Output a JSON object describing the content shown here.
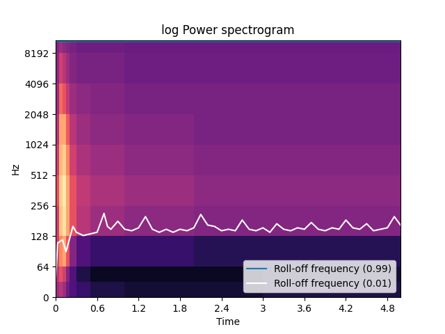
{
  "chart_data": {
    "type": "spectrogram",
    "title": "log Power spectrogram",
    "x_label": "Time",
    "y_label": "Hz",
    "log": "y",
    "grid": false,
    "legend": "lower right",
    "xlim": [
      0,
      4.99
    ],
    "xticks": [
      0,
      0.6,
      1.2,
      1.8,
      2.4,
      3,
      3.6,
      4.2,
      4.8
    ],
    "ylim": [
      0,
      11025
    ],
    "yticks": [
      0,
      64,
      128,
      256,
      512,
      1024,
      2048,
      4096,
      8192
    ],
    "time_edges": [
      0,
      0.05,
      0.1,
      0.15,
      0.2,
      0.3,
      0.5,
      1.0,
      2.0,
      3.0,
      4.0,
      4.99
    ],
    "freq_edges": [
      0,
      32,
      64,
      128,
      256,
      512,
      1024,
      2048,
      4096,
      8192,
      11025
    ],
    "clim": [
      -80,
      0
    ],
    "cells": [
      [
        -45,
        -40,
        -45,
        -55,
        -60,
        -65,
        -70,
        -72,
        -72,
        -70,
        -70
      ],
      [
        -40,
        -30,
        -35,
        -50,
        -60,
        -70,
        -75,
        -75,
        -75,
        -72,
        -72
      ],
      [
        -35,
        -20,
        -15,
        -30,
        -50,
        -60,
        -65,
        -65,
        -68,
        -68,
        -68
      ],
      [
        -35,
        -10,
        -5,
        -15,
        -30,
        -40,
        -45,
        -48,
        -50,
        -50,
        -50
      ],
      [
        -30,
        -8,
        -3,
        -15,
        -30,
        -38,
        -42,
        -45,
        -48,
        -48,
        -48
      ],
      [
        -35,
        -12,
        -8,
        -20,
        -35,
        -42,
        -45,
        -48,
        -50,
        -50,
        -50
      ],
      [
        -40,
        -15,
        -15,
        -28,
        -40,
        -45,
        -48,
        -50,
        -52,
        -52,
        -52
      ],
      [
        -45,
        -25,
        -30,
        -38,
        -45,
        -48,
        -50,
        -52,
        -52,
        -52,
        -52
      ],
      [
        -48,
        -35,
        -40,
        -45,
        -50,
        -52,
        -52,
        -54,
        -54,
        -54,
        -54
      ],
      [
        -50,
        -45,
        -48,
        -50,
        -52,
        -54,
        -54,
        -55,
        -55,
        -55,
        -55
      ]
    ],
    "x": [
      0,
      0.03,
      0.1,
      0.15,
      0.2,
      0.25,
      0.3,
      0.4,
      0.5,
      0.6,
      0.7,
      0.75,
      0.8,
      0.9,
      1.0,
      1.1,
      1.2,
      1.3,
      1.4,
      1.5,
      1.6,
      1.7,
      1.8,
      1.9,
      2.0,
      2.1,
      2.2,
      2.3,
      2.4,
      2.5,
      2.6,
      2.7,
      2.8,
      2.9,
      3.0,
      3.1,
      3.2,
      3.3,
      3.4,
      3.5,
      3.6,
      3.7,
      3.8,
      3.9,
      4.0,
      4.1,
      4.2,
      4.3,
      4.4,
      4.5,
      4.6,
      4.7,
      4.8,
      4.9,
      4.99
    ],
    "series": [
      {
        "name": "Roll-off frequency (0.99)",
        "color": "#1f77b4",
        "values": [
          10700,
          10650,
          10600,
          10620,
          10650,
          10680,
          10700,
          10700,
          10700,
          10700,
          10700,
          10700,
          10700,
          10700,
          10700,
          10700,
          10700,
          10700,
          10700,
          10700,
          10700,
          10700,
          10700,
          10700,
          10700,
          10700,
          10700,
          10700,
          10700,
          10700,
          10700,
          10700,
          10700,
          10700,
          10700,
          10700,
          10700,
          10700,
          10700,
          10700,
          10700,
          10700,
          10700,
          10700,
          10700,
          10700,
          10700,
          10700,
          10700,
          10700,
          10700,
          10700,
          10700,
          10700,
          10700
        ]
      },
      {
        "name": "Roll-off frequency (0.01)",
        "color": "#ffffff",
        "values": [
          40,
          110,
          118,
          90,
          120,
          160,
          140,
          130,
          135,
          140,
          215,
          160,
          150,
          180,
          150,
          145,
          155,
          200,
          150,
          140,
          150,
          140,
          150,
          145,
          155,
          210,
          165,
          160,
          145,
          150,
          145,
          185,
          150,
          145,
          155,
          140,
          170,
          150,
          145,
          155,
          150,
          175,
          150,
          145,
          155,
          150,
          185,
          155,
          150,
          170,
          145,
          150,
          155,
          200,
          165
        ]
      }
    ]
  }
}
